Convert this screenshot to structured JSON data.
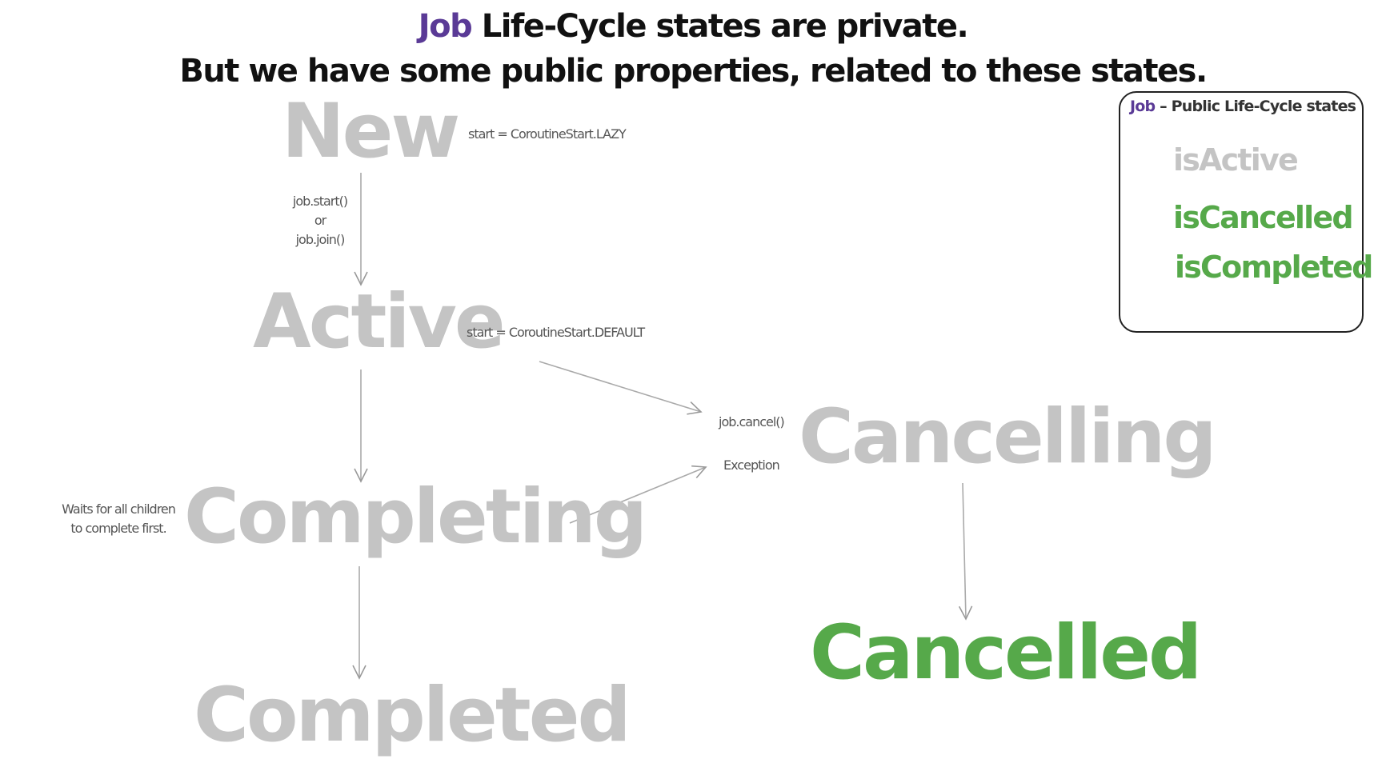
{
  "heading": {
    "line1_accent": "Job",
    "line1_rest": " Life-Cycle states are private.",
    "line2": "But we have some public properties, related to these states."
  },
  "states": {
    "new": "New",
    "active": "Active",
    "completing": "Completing",
    "completed": "Completed",
    "cancelling": "Cancelling",
    "cancelled": "Cancelled"
  },
  "notes": {
    "start_lazy": "start = CoroutineStart.LAZY",
    "start_default": "start = CoroutineStart.DEFAULT",
    "job_start_line1": "job.start()",
    "job_start_line2": "or",
    "job_start_line3": "job.join()",
    "job_cancel": "job.cancel()",
    "exception": "Exception",
    "waits_line1": "Waits for all children",
    "waits_line2": "to complete first."
  },
  "legend": {
    "title_accent": "Job",
    "title_rest": " – Public Life-Cycle states",
    "items": [
      "isActive",
      "isCancelled",
      "isCompleted"
    ]
  },
  "colors": {
    "accent": "#5a3a96",
    "inactive_state": "#c4c4c4",
    "active_state": "#56a94a",
    "text": "#111111"
  }
}
